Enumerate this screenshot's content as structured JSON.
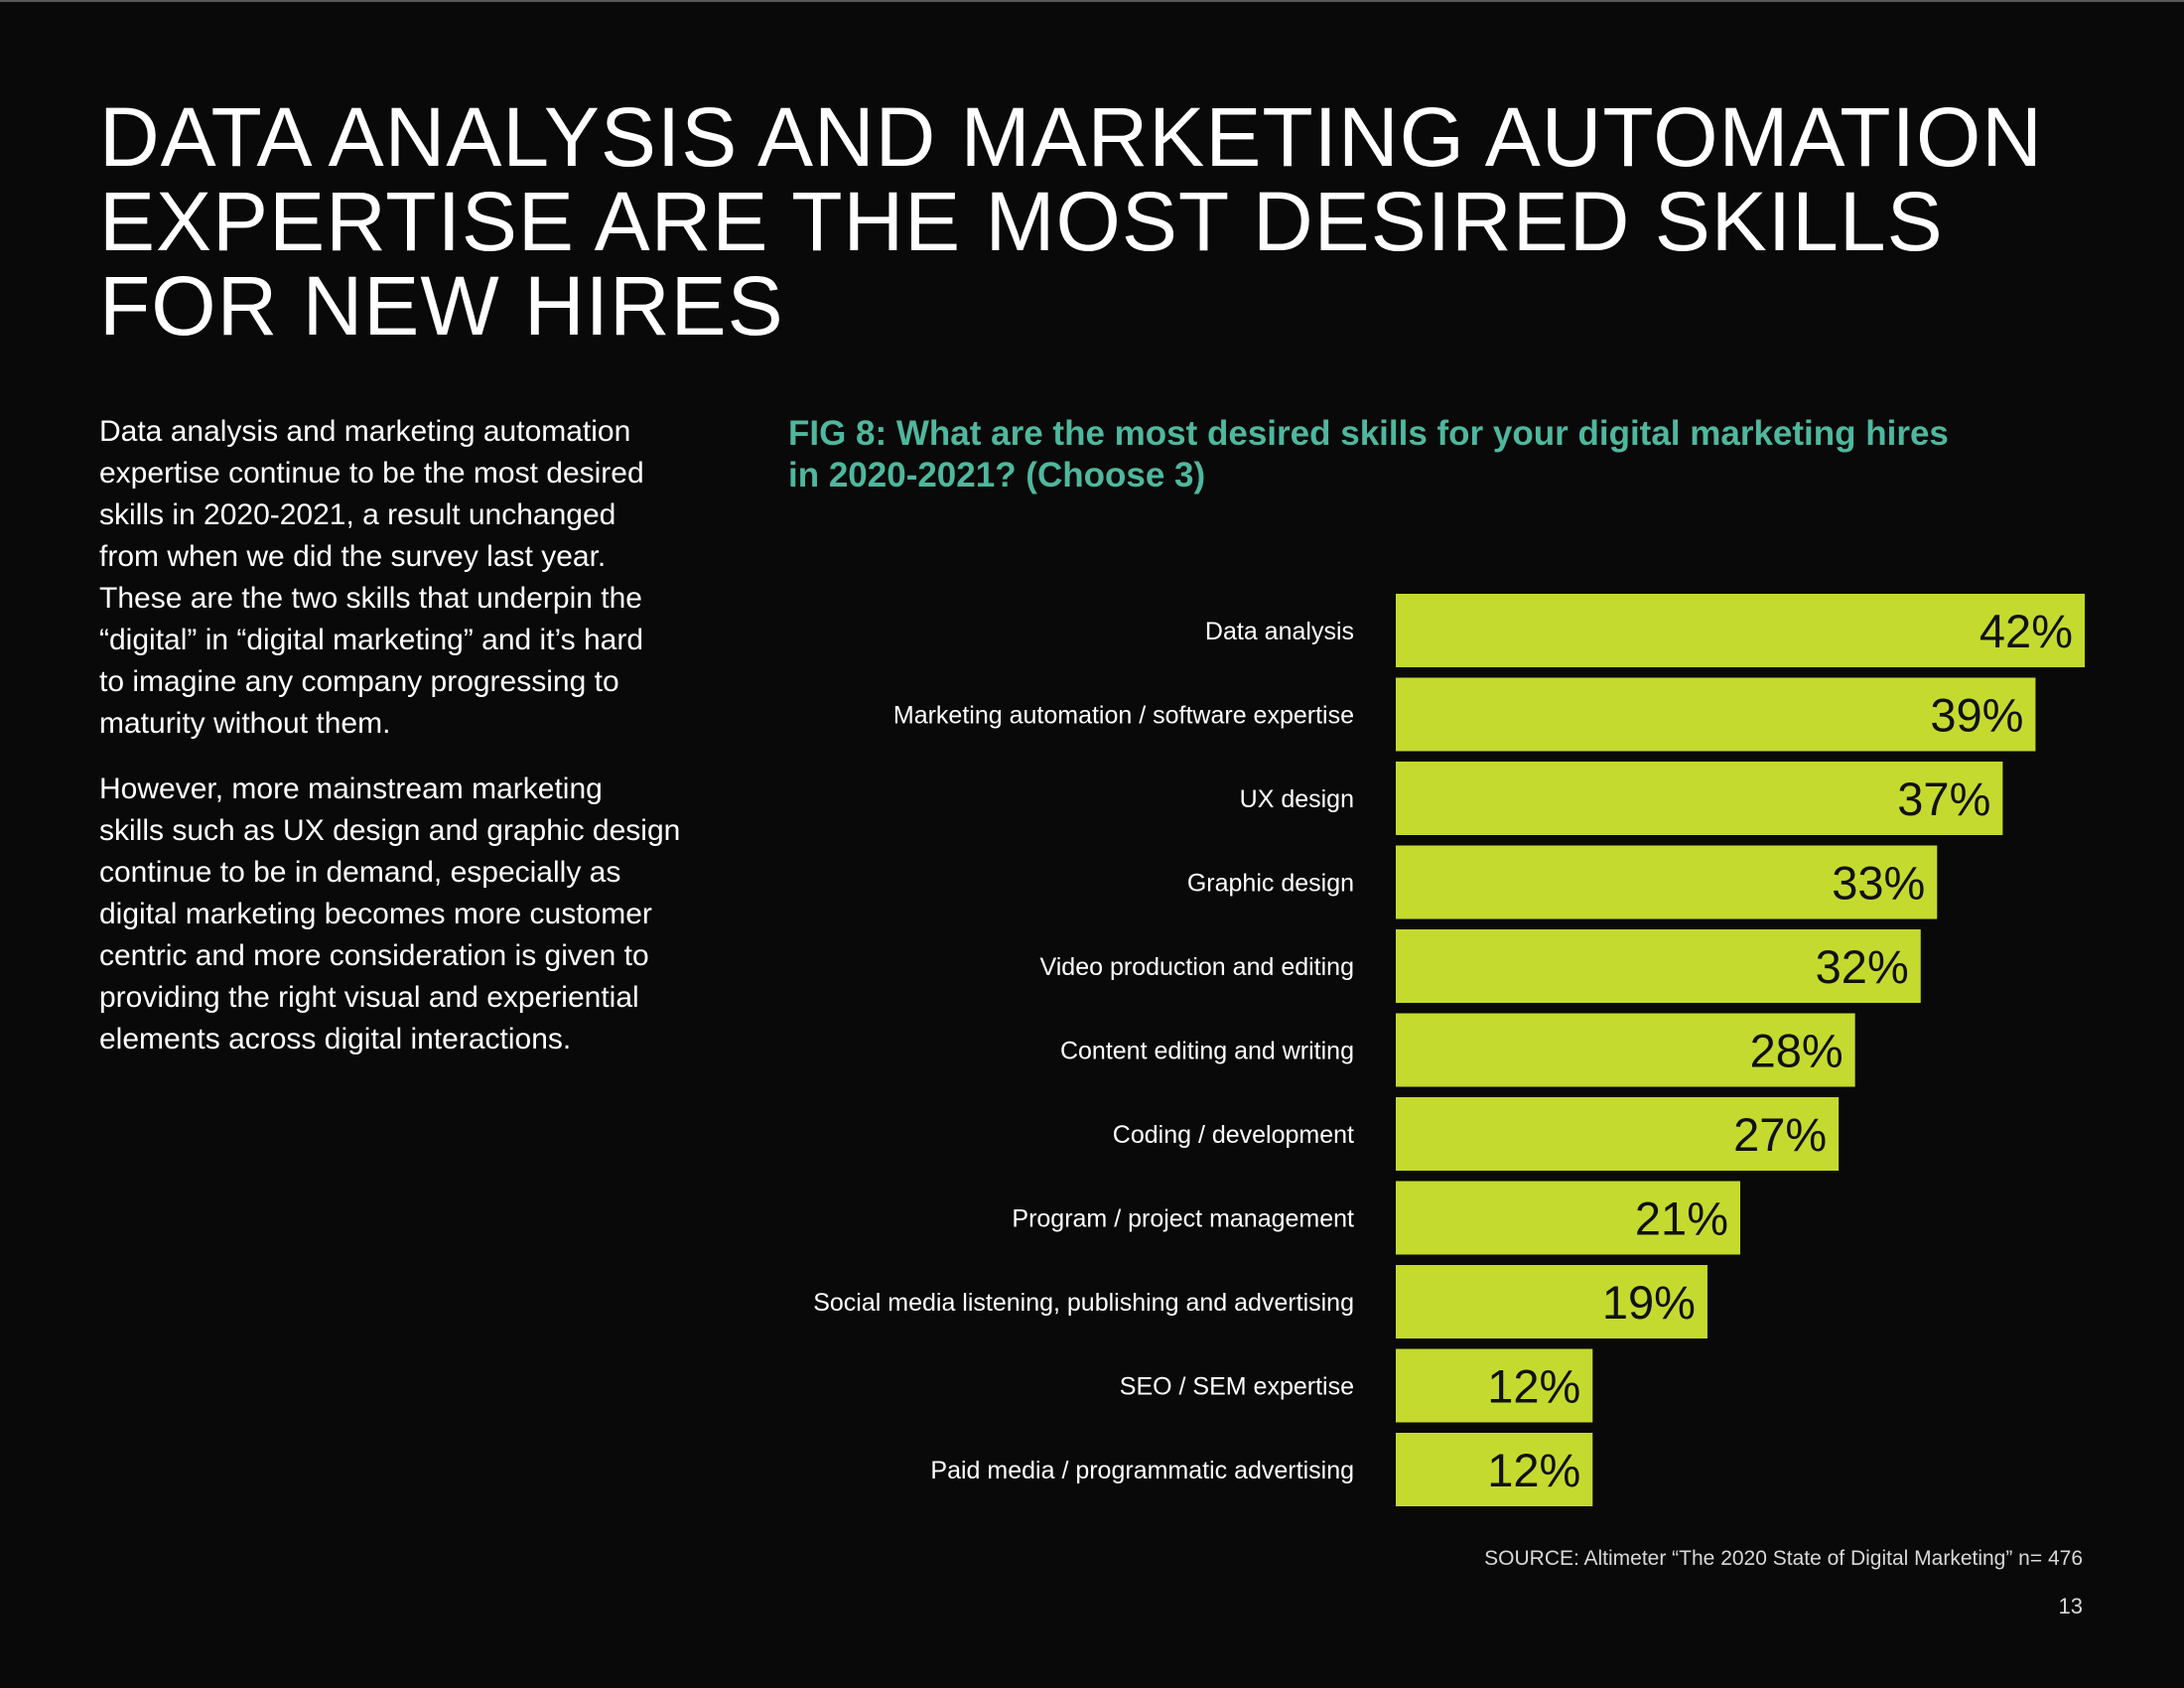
{
  "headline": {
    "lines": [
      "DATA ANALYSIS AND MARKETING AUTOMATION",
      "EXPERTISE ARE THE MOST DESIRED SKILLS",
      "FOR NEW HIRES"
    ]
  },
  "body": {
    "paragraphs": [
      {
        "lines": [
          "Data analysis and marketing automation",
          "expertise continue to be the most desired",
          "skills in 2020-2021, a result unchanged",
          "from when we did the survey last year.",
          "These are the two skills that underpin the",
          "“digital” in “digital marketing” and it’s hard",
          "to imagine any company progressing to",
          "maturity without them."
        ]
      },
      {
        "lines": [
          "However, more mainstream marketing",
          "skills such as UX design and graphic design",
          "continue to be in demand, especially as",
          "digital marketing becomes more customer",
          "centric and more consideration is given to",
          "providing the right visual and experiential",
          "elements across digital interactions."
        ]
      }
    ]
  },
  "figure": {
    "title_lines": [
      "FIG 8: What are the most desired skills for your digital marketing hires",
      "in 2020-2021? (Choose 3)"
    ],
    "source": "SOURCE: Altimeter “The 2020 State of Digital Marketing” n= 476"
  },
  "page_number": "13",
  "colors": {
    "background": "#0a0909",
    "bar": "#c5da2f",
    "figure_title": "#4fb79d",
    "bar_label": "#111111"
  },
  "chart_data": {
    "type": "bar",
    "orientation": "horizontal",
    "categories": [
      "Data analysis",
      "Marketing automation / software expertise",
      "UX design",
      "Graphic design",
      "Video production and editing",
      "Content editing and writing",
      "Coding / development",
      "Program / project management",
      "Social media listening, publishing and advertising",
      "SEO / SEM expertise",
      "Paid media / programmatic advertising"
    ],
    "values": [
      42,
      39,
      37,
      33,
      32,
      28,
      27,
      21,
      19,
      12,
      12
    ],
    "value_labels": [
      "42%",
      "39%",
      "37%",
      "33%",
      "32%",
      "28%",
      "27%",
      "21%",
      "19%",
      "12%",
      "12%"
    ],
    "unit": "%",
    "title": "FIG 8: What are the most desired skills for your digital marketing hires in 2020-2021? (Choose 3)",
    "xlabel": "",
    "ylabel": "",
    "xlim": [
      0,
      42
    ],
    "grid": false,
    "legend": "none"
  }
}
